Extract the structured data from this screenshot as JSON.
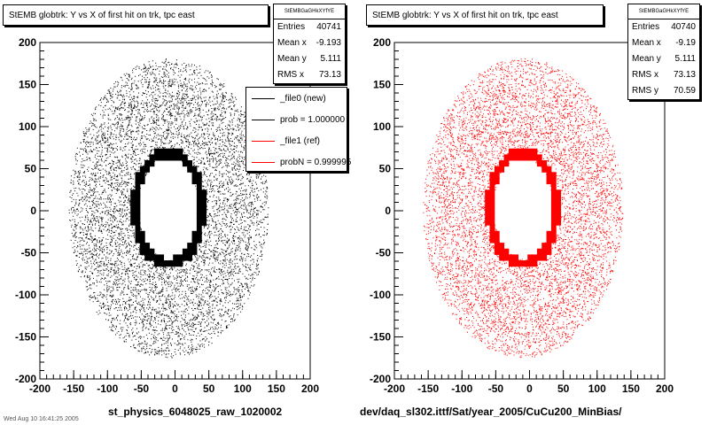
{
  "chart_data": [
    {
      "type": "scatter",
      "title": "StEMB globtrk: Y vs X of first hit on trk, tpc east",
      "xlabel": "st_physics_6048025_raw_1020002",
      "ylabel": "",
      "xlim": [
        -200,
        200
      ],
      "ylim": [
        -200,
        200
      ],
      "x_ticks": [
        -200,
        -150,
        -100,
        -50,
        0,
        50,
        100,
        150,
        200
      ],
      "y_ticks": [
        -200,
        -150,
        -100,
        -50,
        0,
        50,
        100,
        150,
        200
      ],
      "marker_color": "#000000",
      "grid": false,
      "stats": {
        "name": "StEMBGaGHkXYfYE",
        "rows": [
          {
            "label": "Entries",
            "value": "40741"
          },
          {
            "label": "Mean x",
            "value": "-9.193"
          },
          {
            "label": "Mean y",
            "value": "5.111"
          },
          {
            "label": "RMS x",
            "value": "73.13"
          }
        ]
      },
      "legend": {
        "placement": "top-right",
        "entries": [
          {
            "label": "_file0 (new)",
            "color": "#000000"
          },
          {
            "label": "prob = 1.000000",
            "color": "#000000"
          },
          {
            "label": "_file1 (ref)",
            "color": "#ff0000"
          },
          {
            "label": "probN = 0.999995",
            "color": "#ff0000"
          }
        ]
      },
      "distribution": {
        "outer_radius_x": 148,
        "outer_radius_y": 178,
        "hole_radius_x": 44,
        "hole_radius_y": 60,
        "band_thickness": 10
      }
    },
    {
      "type": "scatter",
      "title": "StEMB globtrk: Y vs X of first hit on trk, tpc east",
      "xlabel": "dev/daq_sl302.ittf/Sat/year_2005/CuCu200_MinBias/",
      "ylabel": "",
      "xlim": [
        -200,
        200
      ],
      "ylim": [
        -200,
        200
      ],
      "x_ticks": [
        -200,
        -150,
        -100,
        -50,
        0,
        50,
        100,
        150,
        200
      ],
      "y_ticks": [
        -200,
        -150,
        -100,
        -50,
        0,
        50,
        100,
        150,
        200
      ],
      "marker_color": "#ff0000",
      "grid": false,
      "stats": {
        "name": "StEMBGaGHkXYfYE",
        "rows": [
          {
            "label": "Entries",
            "value": "40740"
          },
          {
            "label": "Mean x",
            "value": "-9.19"
          },
          {
            "label": "Mean y",
            "value": "5.111"
          },
          {
            "label": "RMS x",
            "value": "73.13"
          },
          {
            "label": "RMS y",
            "value": "70.59"
          }
        ]
      },
      "distribution": {
        "outer_radius_x": 148,
        "outer_radius_y": 178,
        "hole_radius_x": 44,
        "hole_radius_y": 60,
        "band_thickness": 10
      }
    }
  ],
  "footnote": "Wed Aug 10 16:41:25 2005"
}
